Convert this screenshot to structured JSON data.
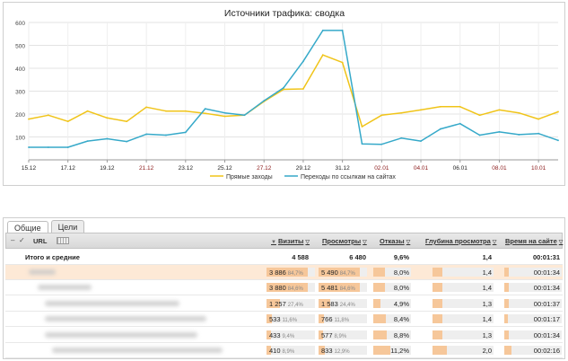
{
  "chart": {
    "title": "Источники трафика: сводка",
    "yticks": [
      "100",
      "200",
      "300",
      "400",
      "500",
      "600"
    ],
    "xticks": [
      {
        "label": "15.12",
        "color": "#222222"
      },
      {
        "label": "17.12",
        "color": "#222222"
      },
      {
        "label": "19.12",
        "color": "#222222"
      },
      {
        "label": "21.12",
        "color": "#8b1a1a"
      },
      {
        "label": "23.12",
        "color": "#222222"
      },
      {
        "label": "25.12",
        "color": "#222222"
      },
      {
        "label": "27.12",
        "color": "#8b1a1a"
      },
      {
        "label": "29.12",
        "color": "#222222"
      },
      {
        "label": "31.12",
        "color": "#222222"
      },
      {
        "label": "02.01",
        "color": "#8b1a1a"
      },
      {
        "label": "04.01",
        "color": "#8b1a1a"
      },
      {
        "label": "06.01",
        "color": "#222222"
      },
      {
        "label": "08.01",
        "color": "#8b1a1a"
      },
      {
        "label": "10.01",
        "color": "#8b1a1a"
      }
    ],
    "legend": {
      "direct": "Прямые заходы",
      "referral": "Переходы по ссылкам на сайтах"
    },
    "colors": {
      "direct": "#f0c419",
      "referral": "#36a9c9"
    }
  },
  "chart_data": {
    "type": "line",
    "title": "Источники трафика: сводка",
    "x": [
      "15.12",
      "16.12",
      "17.12",
      "18.12",
      "19.12",
      "20.12",
      "21.12",
      "22.12",
      "23.12",
      "24.12",
      "25.12",
      "26.12",
      "27.12",
      "28.12",
      "29.12",
      "30.12",
      "31.12",
      "01.01",
      "02.01",
      "03.01",
      "04.01",
      "05.01",
      "06.01",
      "07.01",
      "08.01",
      "09.01",
      "10.01",
      "11.01"
    ],
    "ylim": [
      0,
      600
    ],
    "grid": true,
    "legend_position": "bottom",
    "series": [
      {
        "name": "Прямые заходы",
        "values": [
          178,
          195,
          168,
          213,
          183,
          168,
          230,
          213,
          213,
          203,
          190,
          195,
          255,
          308,
          310,
          458,
          425,
          145,
          195,
          205,
          218,
          232,
          232,
          195,
          218,
          205,
          178,
          210
        ]
      },
      {
        "name": "Переходы по ссылкам на сайтах",
        "values": [
          55,
          55,
          55,
          82,
          92,
          80,
          112,
          108,
          120,
          223,
          205,
          195,
          258,
          315,
          430,
          565,
          565,
          70,
          68,
          95,
          82,
          135,
          158,
          108,
          122,
          110,
          115,
          85
        ]
      }
    ]
  },
  "tabs": [
    "Общие",
    "Цели"
  ],
  "table": {
    "headers": {
      "url": "URL",
      "visits": "Визиты",
      "views": "Просмотры",
      "bounces": "Отказы",
      "depth": "Глубина просмотра",
      "time": "Время на сайте"
    },
    "total": {
      "label": "Итого и средние",
      "visits": "4 588",
      "views": "6 480",
      "bounces": "9,6%",
      "depth": "1,4",
      "time": "00:01:31"
    },
    "rows": [
      {
        "visits": "3 886",
        "visits_pct": "84,7%",
        "views": "5 490",
        "views_pct": "84,7%",
        "bounces": "8,0%",
        "depth": "1,4",
        "time": "00:01:34"
      },
      {
        "visits": "3 880",
        "visits_pct": "84,6%",
        "views": "5 481",
        "views_pct": "84,6%",
        "bounces": "8,0%",
        "depth": "1,4",
        "time": "00:01:34"
      },
      {
        "visits": "1 257",
        "visits_pct": "27,4%",
        "views": "1 583",
        "views_pct": "24,4%",
        "bounces": "4,9%",
        "depth": "1,3",
        "time": "00:01:37"
      },
      {
        "visits": "533",
        "visits_pct": "11,6%",
        "views": "766",
        "views_pct": "11,8%",
        "bounces": "8,4%",
        "depth": "1,4",
        "time": "00:01:17"
      },
      {
        "visits": "433",
        "visits_pct": "9,4%",
        "views": "577",
        "views_pct": "8,9%",
        "bounces": "8,8%",
        "depth": "1,3",
        "time": "00:01:34"
      },
      {
        "visits": "410",
        "visits_pct": "8,9%",
        "views": "833",
        "views_pct": "12,9%",
        "bounces": "11,2%",
        "depth": "2,0",
        "time": "00:02:16"
      }
    ],
    "row_bars": [
      {
        "visits": 0.847,
        "views": 0.847,
        "bounces": 0.08,
        "depth": 0.7,
        "time": 0.69
      },
      {
        "visits": 0.846,
        "views": 0.846,
        "bounces": 0.08,
        "depth": 0.7,
        "time": 0.69
      },
      {
        "visits": 0.274,
        "views": 0.244,
        "bounces": 0.049,
        "depth": 0.65,
        "time": 0.71
      },
      {
        "visits": 0.116,
        "views": 0.118,
        "bounces": 0.084,
        "depth": 0.7,
        "time": 0.57
      },
      {
        "visits": 0.094,
        "views": 0.089,
        "bounces": 0.088,
        "depth": 0.65,
        "time": 0.69
      },
      {
        "visits": 0.089,
        "views": 0.129,
        "bounces": 0.112,
        "depth": 1.0,
        "time": 1.0
      }
    ],
    "bar_color": "#f6c79a"
  }
}
